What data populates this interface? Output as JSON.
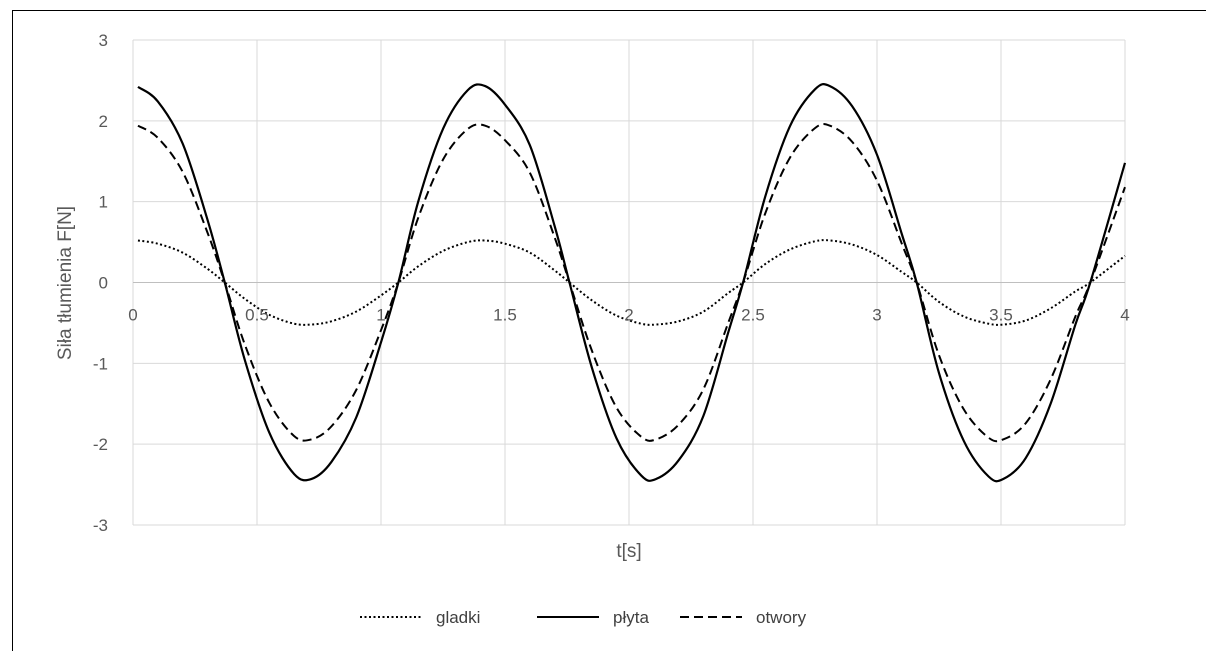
{
  "chart_data": {
    "type": "line",
    "title": "",
    "xlabel": "t[s]",
    "ylabel": "Siła tłumienia F[N]",
    "xlim": [
      0,
      4
    ],
    "ylim": [
      -3,
      3
    ],
    "x_ticks": [
      0,
      0.5,
      1,
      1.5,
      2,
      2.5,
      3,
      3.5,
      4
    ],
    "x_tick_labels": [
      "0",
      "0.5",
      "1",
      "1.5",
      "2",
      "2.5",
      "3",
      "3.5",
      "4"
    ],
    "y_ticks": [
      -3,
      -2,
      -1,
      0,
      1,
      2,
      3
    ],
    "y_tick_labels": [
      "-3",
      "-2",
      "-1",
      "0",
      "1",
      "2",
      "3"
    ],
    "grid": true,
    "legend_position": "bottom",
    "series": [
      {
        "name": "gladki",
        "style": "dotted",
        "color": "#000000",
        "x": [
          0.02,
          0.1,
          0.2,
          0.3,
          0.37,
          0.45,
          0.55,
          0.65,
          0.72,
          0.8,
          0.9,
          1.0,
          1.07,
          1.15,
          1.25,
          1.35,
          1.42,
          1.5,
          1.6,
          1.7,
          1.76,
          1.85,
          1.95,
          2.05,
          2.11,
          2.2,
          2.3,
          2.4,
          2.46,
          2.55,
          2.65,
          2.75,
          2.81,
          2.9,
          3.0,
          3.1,
          3.16,
          3.25,
          3.35,
          3.45,
          3.51,
          3.6,
          3.7,
          3.8,
          3.86,
          4.0
        ],
        "y": [
          0.52,
          0.48,
          0.37,
          0.17,
          0.0,
          -0.2,
          -0.4,
          -0.51,
          -0.52,
          -0.48,
          -0.36,
          -0.16,
          0.0,
          0.2,
          0.39,
          0.5,
          0.52,
          0.48,
          0.37,
          0.15,
          0.0,
          -0.22,
          -0.41,
          -0.51,
          -0.52,
          -0.48,
          -0.36,
          -0.13,
          0.0,
          0.23,
          0.41,
          0.51,
          0.52,
          0.47,
          0.34,
          0.13,
          0.0,
          -0.24,
          -0.42,
          -0.51,
          -0.52,
          -0.47,
          -0.32,
          -0.11,
          0.0,
          0.33
        ]
      },
      {
        "name": "płyta",
        "style": "solid",
        "color": "#000000",
        "x": [
          0.02,
          0.1,
          0.2,
          0.3,
          0.37,
          0.45,
          0.55,
          0.65,
          0.72,
          0.8,
          0.9,
          1.0,
          1.07,
          1.15,
          1.25,
          1.35,
          1.42,
          1.5,
          1.6,
          1.7,
          1.76,
          1.85,
          1.95,
          2.05,
          2.11,
          2.2,
          2.3,
          2.4,
          2.46,
          2.55,
          2.65,
          2.75,
          2.81,
          2.9,
          3.0,
          3.1,
          3.16,
          3.25,
          3.35,
          3.45,
          3.51,
          3.6,
          3.7,
          3.8,
          3.86,
          4.0
        ],
        "y": [
          2.42,
          2.24,
          1.72,
          0.78,
          0.0,
          -0.95,
          -1.86,
          -2.37,
          -2.43,
          -2.22,
          -1.67,
          -0.74,
          0.0,
          1.0,
          1.9,
          2.38,
          2.43,
          2.2,
          1.7,
          0.7,
          0.0,
          -1.05,
          -1.93,
          -2.39,
          -2.43,
          -2.2,
          -1.65,
          -0.62,
          0.0,
          1.07,
          1.94,
          2.39,
          2.43,
          2.18,
          1.58,
          0.6,
          0.0,
          -1.12,
          -1.96,
          -2.4,
          -2.43,
          -2.17,
          -1.5,
          -0.52,
          0.0,
          1.48
        ]
      },
      {
        "name": "otwory",
        "style": "dashed",
        "color": "#000000",
        "x": [
          0.02,
          0.1,
          0.2,
          0.3,
          0.37,
          0.45,
          0.55,
          0.65,
          0.72,
          0.8,
          0.9,
          1.0,
          1.07,
          1.15,
          1.25,
          1.35,
          1.42,
          1.5,
          1.6,
          1.7,
          1.76,
          1.85,
          1.95,
          2.05,
          2.11,
          2.2,
          2.3,
          2.4,
          2.46,
          2.55,
          2.65,
          2.75,
          2.81,
          2.9,
          3.0,
          3.1,
          3.16,
          3.25,
          3.35,
          3.45,
          3.51,
          3.6,
          3.7,
          3.8,
          3.86,
          4.0
        ],
        "y": [
          1.94,
          1.79,
          1.37,
          0.62,
          0.0,
          -0.76,
          -1.49,
          -1.9,
          -1.94,
          -1.78,
          -1.33,
          -0.59,
          0.0,
          0.8,
          1.52,
          1.9,
          1.94,
          1.76,
          1.36,
          0.56,
          0.0,
          -0.84,
          -1.55,
          -1.91,
          -1.94,
          -1.76,
          -1.32,
          -0.5,
          0.0,
          0.86,
          1.55,
          1.91,
          1.94,
          1.74,
          1.26,
          0.48,
          0.0,
          -0.9,
          -1.57,
          -1.92,
          -1.94,
          -1.74,
          -1.2,
          -0.42,
          0.0,
          1.18
        ]
      }
    ]
  }
}
